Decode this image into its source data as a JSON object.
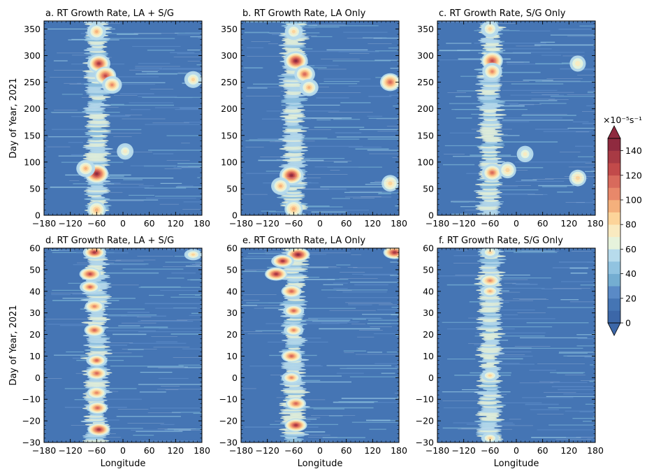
{
  "chart_data": [
    {
      "type": "heatmap",
      "panel": "a",
      "title": "a.  RT Growth Rate, LA + S/G",
      "xlabel": "",
      "ylabel": "Day of Year, 2021",
      "xlim": [
        -180,
        180
      ],
      "ylim": [
        0,
        365
      ],
      "xticks": [
        -180,
        -120,
        -60,
        0,
        60,
        120,
        180
      ],
      "xtick_labels": [
        "−180",
        "−120",
        "−60",
        "0",
        "60",
        "120",
        "180"
      ],
      "yticks": [
        0,
        50,
        100,
        150,
        200,
        250,
        300,
        350
      ],
      "ytick_labels": [
        "0",
        "50",
        "100",
        "150",
        "200",
        "250",
        "300",
        "350"
      ],
      "hotspots": [
        {
          "lon": -55,
          "day": 285,
          "value": 135
        },
        {
          "lon": -40,
          "day": 262,
          "value": 120
        },
        {
          "lon": -25,
          "day": 245,
          "value": 105
        },
        {
          "lon": -60,
          "day": 345,
          "value": 95
        },
        {
          "lon": -60,
          "day": 78,
          "value": 140
        },
        {
          "lon": -85,
          "day": 88,
          "value": 95
        },
        {
          "lon": -60,
          "day": 10,
          "value": 90
        },
        {
          "lon": 160,
          "day": 255,
          "value": 85
        },
        {
          "lon": 5,
          "day": 120,
          "value": 75
        }
      ]
    },
    {
      "type": "heatmap",
      "panel": "b",
      "title": "b.  RT Growth Rate, LA Only",
      "xlabel": "",
      "ylabel": "",
      "xlim": [
        -180,
        180
      ],
      "ylim": [
        0,
        365
      ],
      "xticks": [
        -180,
        -120,
        -60,
        0,
        60,
        120,
        180
      ],
      "xtick_labels": [
        "−180",
        "−120",
        "−60",
        "0",
        "60",
        "120",
        "180"
      ],
      "yticks": [
        0,
        50,
        100,
        150,
        200,
        250,
        300,
        350
      ],
      "ytick_labels": [
        "0",
        "50",
        "100",
        "150",
        "200",
        "250",
        "300",
        "350"
      ],
      "hotspots": [
        {
          "lon": -55,
          "day": 290,
          "value": 145
        },
        {
          "lon": -35,
          "day": 265,
          "value": 115
        },
        {
          "lon": -25,
          "day": 240,
          "value": 95
        },
        {
          "lon": -60,
          "day": 345,
          "value": 85
        },
        {
          "lon": -65,
          "day": 75,
          "value": 145
        },
        {
          "lon": -90,
          "day": 55,
          "value": 95
        },
        {
          "lon": -60,
          "day": 12,
          "value": 90
        },
        {
          "lon": 160,
          "day": 250,
          "value": 110
        },
        {
          "lon": 160,
          "day": 60,
          "value": 80
        }
      ]
    },
    {
      "type": "heatmap",
      "panel": "c",
      "title": "c.  RT Growth Rate, S/G Only",
      "xlabel": "",
      "ylabel": "",
      "xlim": [
        -180,
        180
      ],
      "ylim": [
        0,
        365
      ],
      "xticks": [
        -180,
        -120,
        -60,
        0,
        60,
        120,
        180
      ],
      "xtick_labels": [
        "−180",
        "−120",
        "−60",
        "0",
        "60",
        "120",
        "180"
      ],
      "yticks": [
        0,
        50,
        100,
        150,
        200,
        250,
        300,
        350
      ],
      "ytick_labels": [
        "0",
        "50",
        "100",
        "150",
        "200",
        "250",
        "300",
        "350"
      ],
      "hotspots": [
        {
          "lon": -55,
          "day": 290,
          "value": 120
        },
        {
          "lon": -55,
          "day": 270,
          "value": 105
        },
        {
          "lon": -60,
          "day": 350,
          "value": 85
        },
        {
          "lon": -55,
          "day": 80,
          "value": 115
        },
        {
          "lon": -20,
          "day": 85,
          "value": 80
        },
        {
          "lon": 20,
          "day": 115,
          "value": 75
        },
        {
          "lon": 140,
          "day": 70,
          "value": 80
        },
        {
          "lon": 140,
          "day": 285,
          "value": 70
        }
      ]
    },
    {
      "type": "heatmap",
      "panel": "d",
      "title": "d.  RT Growth Rate, LA + S/G",
      "xlabel": "Longitude",
      "ylabel": "Day of Year, 2021",
      "xlim": [
        -180,
        180
      ],
      "ylim": [
        -30,
        60
      ],
      "xticks": [
        -180,
        -120,
        -60,
        0,
        60,
        120,
        180
      ],
      "xtick_labels": [
        "−180",
        "−120",
        "−60",
        "0",
        "60",
        "120",
        "180"
      ],
      "yticks": [
        -30,
        -20,
        -10,
        0,
        10,
        20,
        30,
        40,
        50,
        60
      ],
      "ytick_labels": [
        "−30",
        "−20",
        "−10",
        "0",
        "10",
        "20",
        "30",
        "40",
        "50",
        "60"
      ],
      "hotspots": [
        {
          "lon": -65,
          "day": 58,
          "value": 135
        },
        {
          "lon": -75,
          "day": 48,
          "value": 120
        },
        {
          "lon": -75,
          "day": 42,
          "value": 115
        },
        {
          "lon": -65,
          "day": 33,
          "value": 100
        },
        {
          "lon": -65,
          "day": 22,
          "value": 110
        },
        {
          "lon": -60,
          "day": 8,
          "value": 115
        },
        {
          "lon": -60,
          "day": 2,
          "value": 110
        },
        {
          "lon": -60,
          "day": -7,
          "value": 100
        },
        {
          "lon": -58,
          "day": -14,
          "value": 110
        },
        {
          "lon": -55,
          "day": -24,
          "value": 130
        },
        {
          "lon": 160,
          "day": 57,
          "value": 85
        }
      ]
    },
    {
      "type": "heatmap",
      "panel": "e",
      "title": "e.  RT Growth Rate, LA Only",
      "xlabel": "Longitude",
      "ylabel": "",
      "xlim": [
        -180,
        180
      ],
      "ylim": [
        -30,
        60
      ],
      "xticks": [
        -180,
        -120,
        -60,
        0,
        60,
        120,
        180
      ],
      "xtick_labels": [
        "−180",
        "−120",
        "−60",
        "0",
        "60",
        "120",
        "180"
      ],
      "yticks": [
        -30,
        -20,
        -10,
        0,
        10,
        20,
        30,
        40,
        50,
        60
      ],
      "ytick_labels": [
        "−30",
        "−20",
        "−10",
        "0",
        "10",
        "20",
        "30",
        "40",
        "50",
        "60"
      ],
      "hotspots": [
        {
          "lon": -50,
          "day": 57,
          "value": 140
        },
        {
          "lon": -85,
          "day": 54,
          "value": 135
        },
        {
          "lon": -100,
          "day": 48,
          "value": 130
        },
        {
          "lon": -65,
          "day": 40,
          "value": 110
        },
        {
          "lon": -60,
          "day": 31,
          "value": 115
        },
        {
          "lon": -60,
          "day": 22,
          "value": 105
        },
        {
          "lon": -65,
          "day": 10,
          "value": 110
        },
        {
          "lon": -65,
          "day": 0,
          "value": 105
        },
        {
          "lon": -55,
          "day": -12,
          "value": 110
        },
        {
          "lon": -55,
          "day": -22,
          "value": 130
        },
        {
          "lon": 170,
          "day": 58,
          "value": 130
        }
      ]
    },
    {
      "type": "heatmap",
      "panel": "f",
      "title": "f.  RT Growth Rate, S/G Only",
      "xlabel": "Longitude",
      "ylabel": "",
      "xlim": [
        -180,
        180
      ],
      "ylim": [
        -30,
        60
      ],
      "xticks": [
        -180,
        -120,
        -60,
        0,
        60,
        120,
        180
      ],
      "xtick_labels": [
        "−180",
        "−120",
        "−60",
        "0",
        "60",
        "120",
        "180"
      ],
      "yticks": [
        -30,
        -20,
        -10,
        0,
        10,
        20,
        30,
        40,
        50,
        60
      ],
      "ytick_labels": [
        "−30",
        "−20",
        "−10",
        "0",
        "10",
        "20",
        "30",
        "40",
        "50",
        "60"
      ],
      "hotspots": [
        {
          "lon": -60,
          "day": 58,
          "value": 85
        },
        {
          "lon": -60,
          "day": 45,
          "value": 100
        },
        {
          "lon": -60,
          "day": 40,
          "value": 95
        },
        {
          "lon": -60,
          "day": 1,
          "value": 85
        },
        {
          "lon": -60,
          "day": -28,
          "value": 85
        }
      ]
    }
  ],
  "colorbar": {
    "label": "×10⁻⁵s⁻¹",
    "min": 0,
    "max": 150,
    "step": 10,
    "ticks": [
      "0",
      "20",
      "40",
      "60",
      "80",
      "100",
      "120",
      "140"
    ],
    "extend": "both",
    "colors": [
      "#3c67a8",
      "#4575b4",
      "#5a8ac6",
      "#74add1",
      "#91c3e0",
      "#b7dbec",
      "#e6f3dc",
      "#f9eac0",
      "#fcd49a",
      "#f4b07c",
      "#e8886a",
      "#d86a5c",
      "#c24a4a",
      "#a83a44",
      "#8f2a3f"
    ]
  }
}
